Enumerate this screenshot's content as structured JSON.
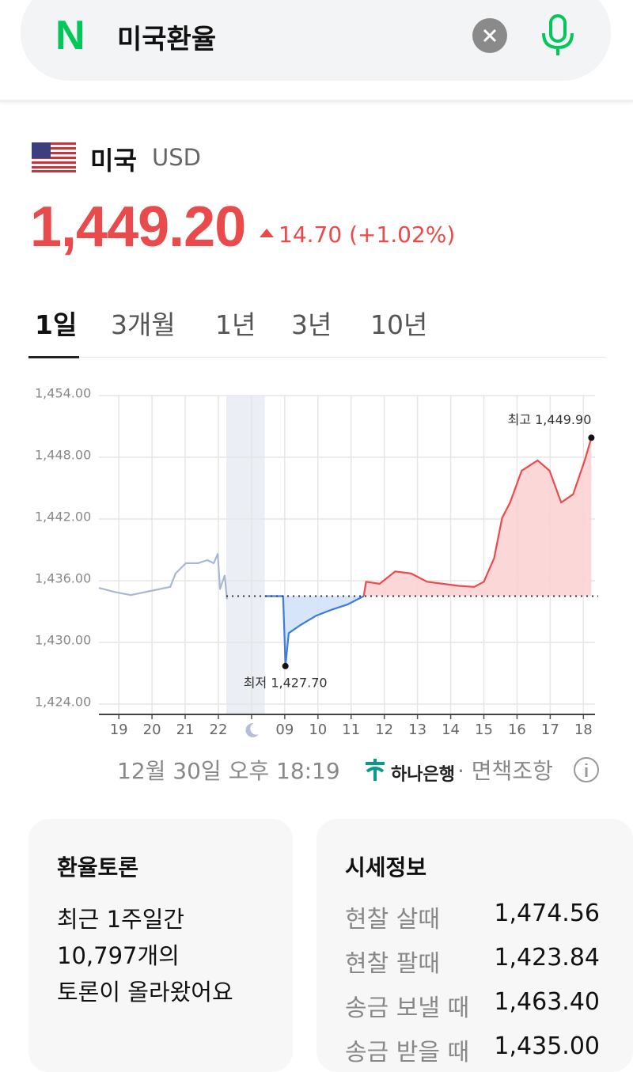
{
  "search": {
    "logo": "N",
    "query": "미국환율"
  },
  "currency": {
    "country": "미국",
    "code": "USD",
    "price": "1,449.20",
    "change": "14.70",
    "change_pct": "(+1.02%)"
  },
  "tabs": [
    "1일",
    "3개월",
    "1년",
    "3년",
    "10년"
  ],
  "chart_data": {
    "type": "line",
    "xlim": [
      -0.6,
      14.35
    ],
    "xticks": [
      {
        "value": 0,
        "label": "19"
      },
      {
        "value": 1,
        "label": "20"
      },
      {
        "value": 2,
        "label": "21"
      },
      {
        "value": 3,
        "label": "22"
      },
      {
        "value": 4,
        "label": null
      },
      {
        "value": 5,
        "label": "09"
      },
      {
        "value": 6,
        "label": "10"
      },
      {
        "value": 7,
        "label": "11"
      },
      {
        "value": 8,
        "label": "12"
      },
      {
        "value": 9,
        "label": "13"
      },
      {
        "value": 10,
        "label": "14"
      },
      {
        "value": 11,
        "label": "15"
      },
      {
        "value": 12,
        "label": "16"
      },
      {
        "value": 13,
        "label": "17"
      },
      {
        "value": 14,
        "label": "18"
      }
    ],
    "ylim": [
      1424,
      1454
    ],
    "yticks": [
      {
        "value": 1454,
        "label": "1,454.00"
      },
      {
        "value": 1448,
        "label": "1,448.00"
      },
      {
        "value": 1442,
        "label": "1,442.00"
      },
      {
        "value": 1436,
        "label": "1,436.00"
      },
      {
        "value": 1430,
        "label": "1,430.00"
      },
      {
        "value": 1424,
        "label": "1,424.00"
      }
    ],
    "grid": true,
    "baseline": 1434.5,
    "shade_x": [
      3.24,
      4.4
    ],
    "series": [
      {
        "color": "#a9b8d2",
        "fill": null,
        "x": [
          -0.6,
          -0.36,
          -0.12,
          0.36,
          0.95,
          1.55,
          1.71,
          2.02,
          2.38,
          2.67,
          2.86,
          2.98,
          3.05,
          3.19,
          3.26
        ],
        "values": [
          1435.3,
          1435.1,
          1434.9,
          1434.6,
          1435.0,
          1435.4,
          1436.7,
          1437.7,
          1437.7,
          1438.0,
          1437.7,
          1438.6,
          1435.2,
          1436.5,
          1434.2
        ]
      },
      {
        "color": "#3d7be0",
        "fill": "#d3e2f9",
        "x": [
          4.4,
          4.95,
          5.0,
          5.02,
          5.12,
          5.48,
          5.95,
          6.43,
          6.9,
          7.38
        ],
        "values": [
          1434.5,
          1434.5,
          1430.0,
          1427.7,
          1430.9,
          1431.7,
          1432.6,
          1433.2,
          1433.7,
          1434.5
        ]
      },
      {
        "color": "#ec4a4c",
        "fill": "#fbd3d4",
        "x": [
          7.38,
          7.45,
          7.86,
          8.33,
          8.81,
          9.29,
          9.76,
          10.24,
          10.71,
          11.0,
          11.31,
          11.55,
          11.79,
          12.14,
          12.62,
          12.98,
          13.33,
          13.69,
          14.05,
          14.24
        ],
        "values": [
          1434.5,
          1435.9,
          1435.7,
          1436.9,
          1436.7,
          1435.9,
          1435.7,
          1435.5,
          1435.4,
          1435.9,
          1438.2,
          1442.1,
          1443.6,
          1446.7,
          1447.7,
          1446.7,
          1443.6,
          1444.4,
          1447.8,
          1449.9
        ]
      }
    ],
    "annotations": [
      {
        "text": "최고 1,449.90",
        "series": 2,
        "index": 19
      },
      {
        "text": "최저 1,427.70",
        "series": 1,
        "index": 3
      }
    ]
  },
  "footer": {
    "time": "12월 30일 오후 18:19",
    "bank": "하나은행",
    "disclaimer": "· 면책조항"
  },
  "discussion": {
    "title": "환율토론",
    "lines": [
      "최근 1주일간",
      "10,797개의",
      "토론이 올라왔어요"
    ]
  },
  "info": {
    "title": "시세정보",
    "rows": [
      [
        "현찰 살때",
        "1,474.56"
      ],
      [
        "현찰 팔때",
        "1,423.84"
      ],
      [
        "송금 보낼 때",
        "1,463.40"
      ],
      [
        "송금 받을 때",
        "1,435.00"
      ]
    ]
  }
}
